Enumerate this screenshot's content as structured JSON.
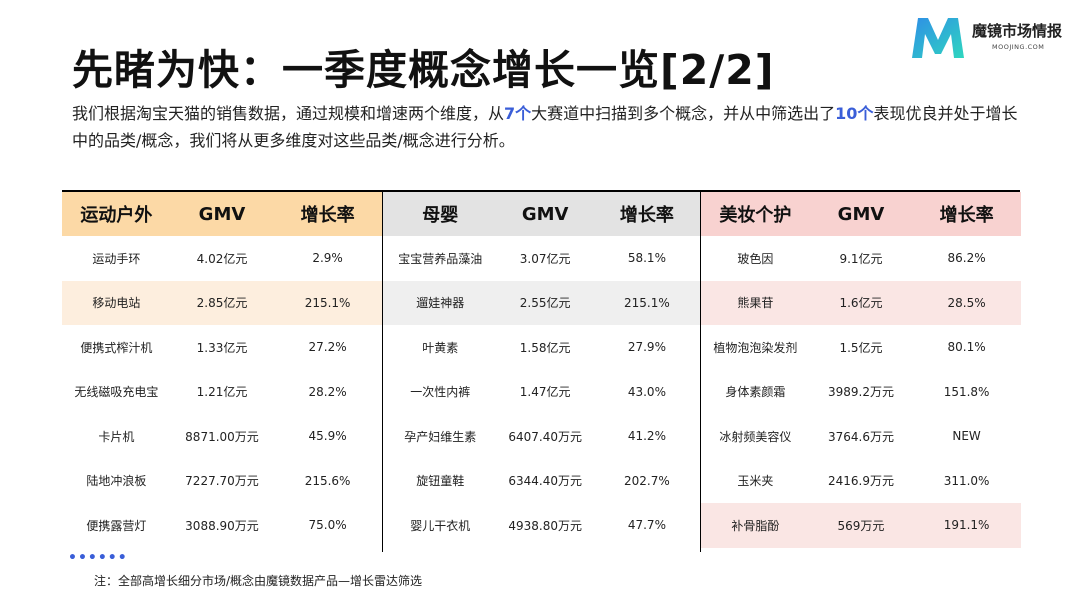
{
  "title": "先睹为快：一季度概念增长一览[2/2]",
  "logo": {
    "name": "魔镜市场情报",
    "sub": "MOOJING.COM"
  },
  "description": {
    "part1": "我们根据淘宝天猫的销售数据，通过规模和增速两个维度，从",
    "num1": "7个",
    "part2": "大赛道中扫描到多个概念，并从中筛选出了",
    "num2": "10个",
    "part3": "表现优良并处于增长中的品类/概念，我们将从更多维度对这些品类/概念进行分析。"
  },
  "groups": [
    {
      "category": "运动户外",
      "col_gmv": "GMV",
      "col_growth": "增长率",
      "rows": [
        {
          "name": "运动手环",
          "gmv": "4.02亿元",
          "growth": "2.9%"
        },
        {
          "name": "移动电站",
          "gmv": "2.85亿元",
          "growth": "215.1%"
        },
        {
          "name": "便携式榨汁机",
          "gmv": "1.33亿元",
          "growth": "27.2%"
        },
        {
          "name": "无线磁吸充电宝",
          "gmv": "1.21亿元",
          "growth": "28.2%"
        },
        {
          "name": "卡片机",
          "gmv": "8871.00万元",
          "growth": "45.9%"
        },
        {
          "name": "陆地冲浪板",
          "gmv": "7227.70万元",
          "growth": "215.6%"
        },
        {
          "name": "便携露营灯",
          "gmv": "3088.90万元",
          "growth": "75.0%"
        }
      ]
    },
    {
      "category": "母婴",
      "col_gmv": "GMV",
      "col_growth": "增长率",
      "rows": [
        {
          "name": "宝宝营养品藻油",
          "gmv": "3.07亿元",
          "growth": "58.1%"
        },
        {
          "name": "遛娃神器",
          "gmv": "2.55亿元",
          "growth": "215.1%"
        },
        {
          "name": "叶黄素",
          "gmv": "1.58亿元",
          "growth": "27.9%"
        },
        {
          "name": "一次性内裤",
          "gmv": "1.47亿元",
          "growth": "43.0%"
        },
        {
          "name": "孕产妇维生素",
          "gmv": "6407.40万元",
          "growth": "41.2%"
        },
        {
          "name": "旋钮童鞋",
          "gmv": "6344.40万元",
          "growth": "202.7%"
        },
        {
          "name": "婴儿干衣机",
          "gmv": "4938.80万元",
          "growth": "47.7%"
        }
      ]
    },
    {
      "category": "美妆个护",
      "col_gmv": "GMV",
      "col_growth": "增长率",
      "rows": [
        {
          "name": "玻色因",
          "gmv": "9.1亿元",
          "growth": "86.2%"
        },
        {
          "name": "熊果苷",
          "gmv": "1.6亿元",
          "growth": "28.5%"
        },
        {
          "name": "植物泡泡染发剂",
          "gmv": "1.5亿元",
          "growth": "80.1%"
        },
        {
          "name": "身体素颜霜",
          "gmv": "3989.2万元",
          "growth": "151.8%"
        },
        {
          "name": "冰射频美容仪",
          "gmv": "3764.6万元",
          "growth": "NEW"
        },
        {
          "name": "玉米夹",
          "gmv": "2416.9万元",
          "growth": "311.0%"
        },
        {
          "name": "补骨脂酚",
          "gmv": "569万元",
          "growth": "191.1%"
        }
      ]
    }
  ],
  "dots": "••••••",
  "note": "注：全部高增长细分市场/概念由魔镜数据产品—增长雷达筛选",
  "colors": {
    "accent": "#3a5ed8",
    "sports_header": "#fcd9a6",
    "sports_highlight": "#fdeede",
    "baby_header": "#e3e3e3",
    "baby_highlight": "#efefef",
    "beauty_header": "#f8d2d0",
    "beauty_highlight": "#fae6e4",
    "logo_gradient": [
      "#3aa0e8",
      "#2fd1c0"
    ]
  }
}
